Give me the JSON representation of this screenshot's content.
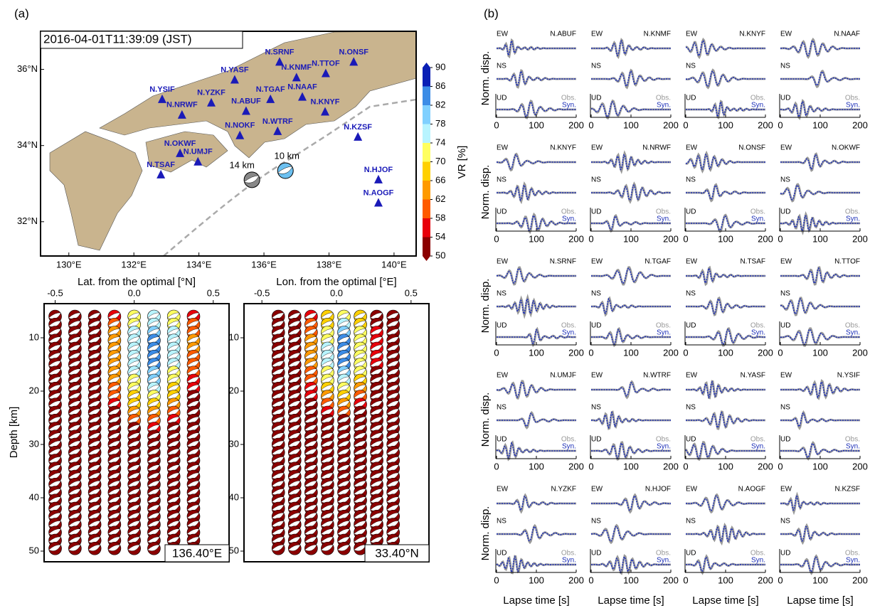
{
  "panel_a": {
    "label": "(a)",
    "map": {
      "title": "2016-04-01T11:39:09 (JST)",
      "lonlim": [
        129.13,
        140.68
      ],
      "latlim": [
        31.1,
        37.0
      ],
      "lon_ticks": [
        {
          "value": 130,
          "label": "130°E"
        },
        {
          "value": 132,
          "label": "132°E"
        },
        {
          "value": 134,
          "label": "134°E"
        },
        {
          "value": 136,
          "label": "136°E"
        },
        {
          "value": 138,
          "label": "138°E"
        },
        {
          "value": 140,
          "label": "140°E"
        }
      ],
      "lat_ticks": [
        {
          "value": 32,
          "label": "32°N"
        },
        {
          "value": 34,
          "label": "34°N"
        },
        {
          "value": 36,
          "label": "36°N"
        }
      ],
      "stations": [
        {
          "name": "N.SRNF",
          "lon": 136.48,
          "lat": 36.19
        },
        {
          "name": "N.ONSF",
          "lon": 138.76,
          "lat": 36.19
        },
        {
          "name": "N.YASF",
          "lon": 135.1,
          "lat": 35.72
        },
        {
          "name": "N.KNMF",
          "lon": 137.0,
          "lat": 35.78
        },
        {
          "name": "N.TTOF",
          "lon": 137.9,
          "lat": 35.89
        },
        {
          "name": "N.YSIF",
          "lon": 132.87,
          "lat": 35.21
        },
        {
          "name": "N.YZKF",
          "lon": 134.38,
          "lat": 35.12
        },
        {
          "name": "N.TGAF",
          "lon": 136.2,
          "lat": 35.21
        },
        {
          "name": "N.NAAF",
          "lon": 137.18,
          "lat": 35.27
        },
        {
          "name": "N.NRWF",
          "lon": 133.48,
          "lat": 34.8
        },
        {
          "name": "N.ABUF",
          "lon": 135.45,
          "lat": 34.9
        },
        {
          "name": "N.KNYF",
          "lon": 137.88,
          "lat": 34.88
        },
        {
          "name": "N.WTRF",
          "lon": 136.42,
          "lat": 34.37
        },
        {
          "name": "N.NOKF",
          "lon": 135.26,
          "lat": 34.26
        },
        {
          "name": "N.KZSF",
          "lon": 138.89,
          "lat": 34.22
        },
        {
          "name": "N.OKWF",
          "lon": 133.42,
          "lat": 33.79
        },
        {
          "name": "N.UMJF",
          "lon": 133.97,
          "lat": 33.57
        },
        {
          "name": "N.TSAF",
          "lon": 132.83,
          "lat": 33.23
        },
        {
          "name": "N.HJOF",
          "lon": 139.52,
          "lat": 33.1
        },
        {
          "name": "N.AOGF",
          "lon": 139.52,
          "lat": 32.49
        }
      ],
      "solutions": [
        {
          "label": "10 km",
          "lon": 136.66,
          "lat": 33.34,
          "color": "#6cc0f0"
        },
        {
          "label": "14 km",
          "lon": 135.63,
          "lat": 33.1,
          "color": "#888888"
        }
      ]
    },
    "colorbar": {
      "label": "VR [%]",
      "ticks": [
        50,
        54,
        58,
        62,
        66,
        70,
        74,
        78,
        82,
        86,
        90
      ],
      "colors": [
        "#8b0000",
        "#e8000b",
        "#ff5a00",
        "#ff9a00",
        "#ffd000",
        "#ffff60",
        "#b8f4ff",
        "#80d0ff",
        "#3c8ce6",
        "#0a1fb5"
      ]
    },
    "grids": [
      {
        "xlabel": "Lat. from the optimal [°N]",
        "xlim": [
          -0.57,
          0.6
        ],
        "xticks": [
          -0.5,
          {
            "value": 0.0,
            "label": "0.0"
          },
          0.5
        ],
        "ylabel": "Depth [km]",
        "ylim": [
          3.6,
          52
        ],
        "yticks": [
          10,
          20,
          30,
          40,
          50
        ],
        "corner": "136.40°E",
        "offsets": [
          -0.5,
          -0.375,
          -0.25,
          -0.125,
          0,
          0.125,
          0.25,
          0.375
        ],
        "depths": [
          6,
          7.5,
          9,
          10.5,
          12,
          13.5,
          15,
          16.5,
          18,
          19.5,
          21,
          22.5,
          24,
          25.5,
          27,
          28.5,
          30,
          31.5,
          33,
          34.5,
          36,
          37.5,
          39,
          40.5,
          42,
          43.5,
          45,
          46.5,
          48,
          49.5
        ],
        "vr": [
          [
            45,
            45,
            48,
            57,
            70,
            74,
            70,
            56
          ],
          [
            45,
            45,
            49,
            60,
            72,
            76,
            72,
            58
          ],
          [
            45,
            46,
            50,
            62,
            74,
            80,
            74,
            60
          ],
          [
            45,
            46,
            51,
            64,
            76,
            83,
            76,
            62
          ],
          [
            45,
            46,
            51,
            65,
            77,
            84,
            77,
            62
          ],
          [
            45,
            46,
            51,
            65,
            77,
            84,
            76,
            61
          ],
          [
            45,
            46,
            50,
            64,
            76,
            83,
            75,
            60
          ],
          [
            45,
            46,
            50,
            63,
            75,
            81,
            73,
            58
          ],
          [
            45,
            45,
            49,
            62,
            73,
            78,
            71,
            56
          ],
          [
            45,
            45,
            48,
            60,
            71,
            75,
            69,
            54
          ],
          [
            45,
            45,
            47,
            58,
            69,
            72,
            66,
            52
          ],
          [
            45,
            45,
            46,
            56,
            66,
            69,
            63,
            50
          ],
          [
            45,
            45,
            45,
            53,
            62,
            65,
            59,
            48
          ],
          [
            45,
            45,
            45,
            50,
            58,
            61,
            55,
            46
          ],
          [
            45,
            45,
            45,
            47,
            52,
            55,
            50,
            45
          ],
          [
            45,
            45,
            45,
            45,
            48,
            50,
            47,
            45
          ],
          [
            45,
            45,
            45,
            45,
            47,
            48,
            46,
            45
          ],
          [
            45,
            45,
            45,
            45,
            46,
            47,
            45,
            45
          ],
          [
            45,
            45,
            45,
            45,
            45,
            46,
            45,
            45
          ],
          [
            45,
            45,
            45,
            45,
            45,
            45,
            45,
            45
          ],
          [
            45,
            45,
            45,
            45,
            45,
            45,
            45,
            45
          ],
          [
            45,
            45,
            45,
            45,
            45,
            45,
            45,
            45
          ],
          [
            45,
            45,
            45,
            45,
            45,
            45,
            45,
            45
          ],
          [
            45,
            45,
            45,
            45,
            45,
            45,
            45,
            45
          ],
          [
            45,
            45,
            45,
            45,
            45,
            45,
            45,
            45
          ],
          [
            45,
            45,
            45,
            45,
            45,
            45,
            45,
            45
          ],
          [
            45,
            45,
            45,
            45,
            45,
            45,
            45,
            45
          ],
          [
            45,
            45,
            45,
            45,
            45,
            45,
            45,
            45
          ],
          [
            45,
            45,
            45,
            45,
            45,
            45,
            45,
            45
          ],
          [
            45,
            45,
            45,
            45,
            45,
            45,
            45,
            45
          ]
        ]
      },
      {
        "xlabel": "Lon. from the optimal [°E]",
        "xlim": [
          -0.62,
          0.62
        ],
        "xticks": [
          -0.5,
          {
            "value": 0.0,
            "label": "0.0"
          },
          0.5
        ],
        "ylabel": "Depth [km]",
        "ylim": [
          3.6,
          52
        ],
        "yticks": [
          10,
          20,
          30,
          40,
          50
        ],
        "corner": "33.40°N",
        "offsets": [
          -0.39,
          -0.28,
          -0.17,
          -0.06,
          0.05,
          0.16,
          0.27,
          0.38
        ],
        "depths": [
          6,
          7.5,
          9,
          10.5,
          12,
          13.5,
          15,
          16.5,
          18,
          19.5,
          21,
          22.5,
          24,
          25.5,
          27,
          28.5,
          30,
          31.5,
          33,
          34.5,
          36,
          37.5,
          39,
          40.5,
          42,
          43.5,
          45,
          46.5,
          48,
          49.5
        ],
        "vr": [
          [
            45,
            48,
            56,
            66,
            72,
            66,
            52,
            45
          ],
          [
            45,
            49,
            58,
            68,
            75,
            68,
            53,
            45
          ],
          [
            45,
            50,
            60,
            70,
            79,
            70,
            55,
            45
          ],
          [
            45,
            50,
            62,
            72,
            82,
            72,
            56,
            45
          ],
          [
            45,
            51,
            63,
            74,
            84,
            73,
            57,
            45
          ],
          [
            45,
            51,
            63,
            75,
            84,
            73,
            56,
            45
          ],
          [
            45,
            50,
            62,
            74,
            83,
            72,
            55,
            45
          ],
          [
            45,
            50,
            61,
            72,
            80,
            70,
            53,
            45
          ],
          [
            45,
            49,
            59,
            70,
            76,
            67,
            51,
            45
          ],
          [
            45,
            48,
            57,
            67,
            72,
            63,
            49,
            45
          ],
          [
            45,
            47,
            54,
            63,
            68,
            59,
            47,
            45
          ],
          [
            45,
            46,
            51,
            59,
            63,
            55,
            46,
            45
          ],
          [
            45,
            45,
            48,
            55,
            58,
            51,
            45,
            45
          ],
          [
            45,
            45,
            46,
            51,
            53,
            48,
            45,
            45
          ],
          [
            45,
            45,
            45,
            48,
            49,
            46,
            45,
            45
          ],
          [
            45,
            45,
            45,
            46,
            47,
            45,
            45,
            45
          ],
          [
            45,
            45,
            45,
            45,
            46,
            45,
            45,
            45
          ],
          [
            45,
            45,
            45,
            45,
            45,
            45,
            45,
            45
          ],
          [
            45,
            45,
            45,
            45,
            45,
            45,
            45,
            45
          ],
          [
            45,
            45,
            45,
            45,
            45,
            45,
            45,
            45
          ],
          [
            45,
            45,
            45,
            45,
            45,
            45,
            45,
            45
          ],
          [
            45,
            45,
            45,
            45,
            45,
            45,
            45,
            45
          ],
          [
            45,
            45,
            45,
            45,
            45,
            45,
            45,
            45
          ],
          [
            45,
            45,
            45,
            45,
            45,
            45,
            45,
            45
          ],
          [
            45,
            45,
            45,
            45,
            45,
            45,
            45,
            45
          ],
          [
            45,
            45,
            45,
            45,
            45,
            45,
            45,
            45
          ],
          [
            45,
            45,
            45,
            45,
            45,
            45,
            45,
            45
          ],
          [
            45,
            45,
            45,
            45,
            45,
            45,
            45,
            45
          ],
          [
            45,
            45,
            45,
            45,
            45,
            45,
            45,
            45
          ],
          [
            45,
            45,
            45,
            45,
            45,
            45,
            45,
            45
          ]
        ]
      }
    ]
  },
  "panel_b": {
    "label": "(b)",
    "components": [
      "EW",
      "NS",
      "UD"
    ],
    "obs": "Obs.",
    "syn": "Syn.",
    "ylabel": "Norm. disp.",
    "xlabel": "Lapse time [s]",
    "xlim": [
      0,
      200
    ],
    "xticks": [
      0,
      100,
      200
    ],
    "stations": [
      "N.ABUF",
      "N.KNMF",
      "N.KNYF",
      "N.NAAF",
      "N.KNYF",
      "N.NRWF",
      "N.ONSF",
      "N.OKWF",
      "N.SRNF",
      "N.TGAF",
      "N.TSAF",
      "N.TTOF",
      "N.UMJF",
      "N.WTRF",
      "N.YASF",
      "N.YSIF",
      "N.YZKF",
      "N.HJOF",
      "N.AOGF",
      "N.KZSF"
    ]
  }
}
